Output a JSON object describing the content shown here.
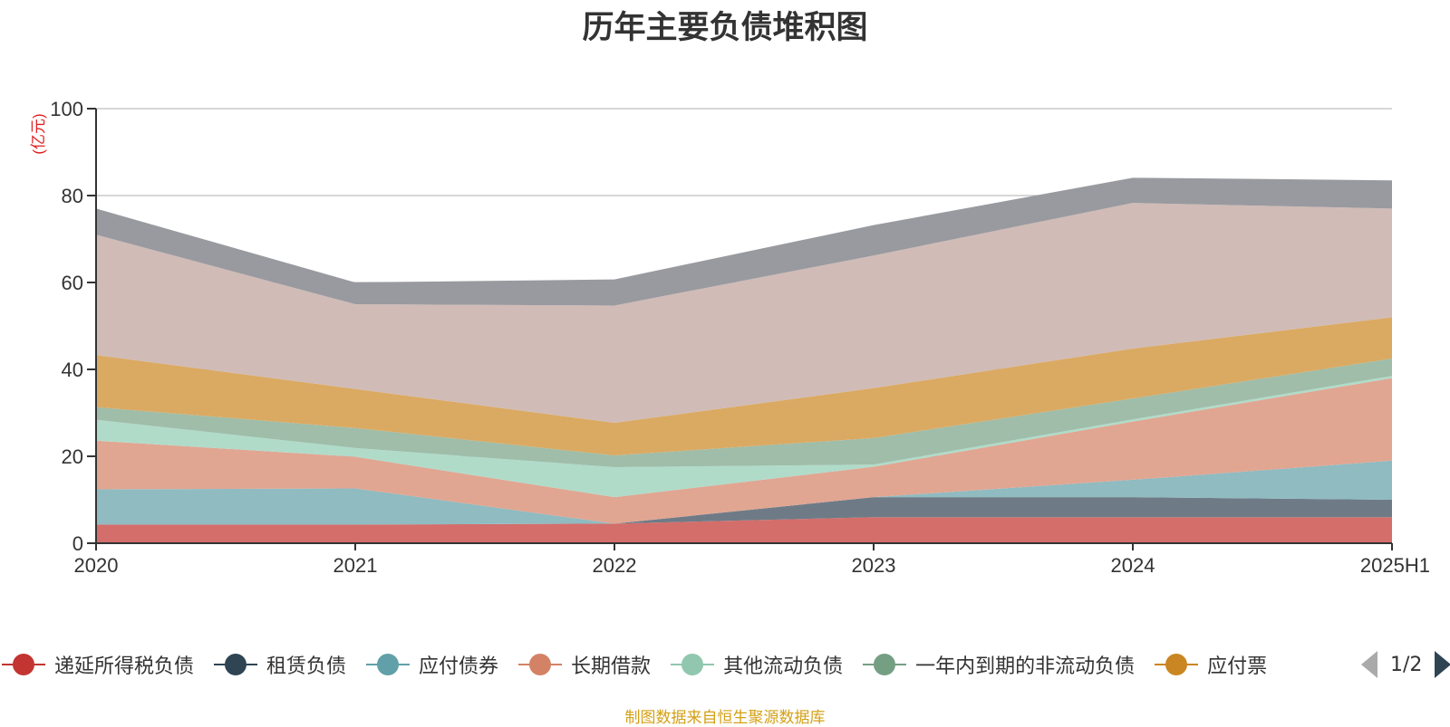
{
  "title": "历年主要负债堆积图",
  "source_note": "制图数据来自恒生聚源数据库",
  "pager": {
    "text": "1/2"
  },
  "legend": [
    {
      "label": "递延所得税负债",
      "color": "#c23531"
    },
    {
      "label": "租赁负债",
      "color": "#2f4554"
    },
    {
      "label": "应付债券",
      "color": "#61a0a8"
    },
    {
      "label": "长期借款",
      "color": "#d48265"
    },
    {
      "label": "其他流动负债",
      "color": "#91c7ae"
    },
    {
      "label": "一年内到期的非流动负债",
      "color": "#749f83"
    },
    {
      "label": "应付票",
      "color": "#ca8622"
    }
  ],
  "chart_data": {
    "type": "area",
    "stacked": true,
    "title": "历年主要负债堆积图",
    "ylabel": "(亿元)",
    "ylim": [
      0,
      100
    ],
    "yticks": [
      0,
      20,
      40,
      60,
      80,
      100
    ],
    "grid": true,
    "categories": [
      "2020",
      "2021",
      "2022",
      "2023",
      "2024",
      "2025H1"
    ],
    "series": [
      {
        "name": "递延所得税负债",
        "color": "#d46e6b",
        "values": [
          4.3,
          4.3,
          4.5,
          6.0,
          6.0,
          6.0
        ]
      },
      {
        "name": "租赁负债",
        "color": "#6e7b87",
        "values": [
          0.0,
          0.0,
          0.0,
          4.6,
          4.6,
          4.0
        ]
      },
      {
        "name": "应付债券",
        "color": "#8fbbc1",
        "values": [
          8.1,
          8.3,
          0.0,
          0.0,
          4.0,
          9.0
        ]
      },
      {
        "name": "长期借款",
        "color": "#e0a692",
        "values": [
          11.2,
          7.3,
          6.1,
          7.0,
          13.4,
          19.0
        ]
      },
      {
        "name": "其他流动负债",
        "color": "#b0dbc9",
        "values": [
          4.8,
          2.0,
          6.9,
          0.5,
          0.5,
          0.5
        ]
      },
      {
        "name": "一年内到期的非流动负债",
        "color": "#9fbda9",
        "values": [
          2.9,
          4.6,
          2.7,
          6.1,
          4.8,
          4.0
        ]
      },
      {
        "name": "应付票",
        "color": "#daaa63",
        "values": [
          12.0,
          9.0,
          7.5,
          11.5,
          11.5,
          9.5
        ]
      },
      {
        "name": "",
        "color": "#d0bbb7",
        "values": [
          27.7,
          19.5,
          27.0,
          30.5,
          33.5,
          25.0
        ]
      },
      {
        "name": "",
        "color": "#999a9f",
        "values": [
          6.0,
          5.0,
          6.0,
          7.0,
          5.8,
          6.5
        ]
      }
    ]
  }
}
